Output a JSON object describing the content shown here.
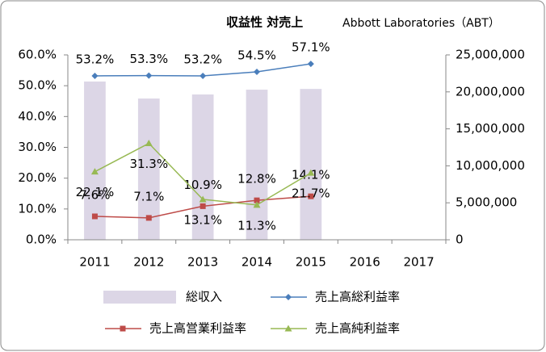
{
  "chart_data": {
    "type": "bar_line",
    "title": "収益性 対売上",
    "subtitle": "Abbott Laboratories（ABT）",
    "categories": [
      "2011",
      "2012",
      "2013",
      "2014",
      "2015",
      "2016",
      "2017"
    ],
    "ylim": [
      0,
      60
    ],
    "yticks": [
      {
        "value": 0,
        "label": "0.0%"
      },
      {
        "value": 10,
        "label": "10.0%"
      },
      {
        "value": 20,
        "label": "20.0%"
      },
      {
        "value": 30,
        "label": "30.0%"
      },
      {
        "value": 40,
        "label": "40.0%"
      },
      {
        "value": 50,
        "label": "50.0%"
      },
      {
        "value": 60,
        "label": "60.0%"
      }
    ],
    "y2lim": [
      0,
      25000000
    ],
    "y2ticks": [
      0,
      {
        "value": 5000000,
        "label": "5,000,000"
      },
      {
        "value": 10000000,
        "label": "10,000,000"
      },
      {
        "value": 15000000,
        "label": "15,000,000"
      },
      {
        "value": 20000000,
        "label": "20,000,000"
      },
      {
        "value": 25000000,
        "label": "25,000,000"
      }
    ],
    "series": [
      {
        "name": "総収入",
        "kind": "bar",
        "axis": "y2",
        "color": "#dcd6e6",
        "values": [
          21400000,
          19100000,
          19650000,
          20300000,
          20400000,
          null,
          null
        ]
      },
      {
        "name": "売上高総利益率",
        "kind": "line",
        "marker": "diamond",
        "color": "#4a7ebb",
        "values": [
          53.2,
          53.3,
          53.2,
          54.5,
          57.1,
          null,
          null
        ],
        "value_labels": [
          "53.2%",
          "53.3%",
          "53.2%",
          "54.5%",
          "57.1%",
          null,
          null
        ]
      },
      {
        "name": "売上高営業利益率",
        "kind": "line",
        "marker": "square",
        "color": "#be4b48",
        "values": [
          7.6,
          7.1,
          10.9,
          12.8,
          14.1,
          null,
          null
        ],
        "value_labels": [
          "7.6%",
          "7.1%",
          "10.9%",
          "12.8%",
          "14.1%",
          null,
          null
        ]
      },
      {
        "name": "売上高純利益率",
        "kind": "line",
        "marker": "triangle",
        "color": "#98b954",
        "values": [
          22.1,
          31.3,
          13.1,
          11.3,
          21.7,
          null,
          null
        ],
        "value_labels": [
          "22.1%",
          "31.3%",
          "13.1%",
          "11.3%",
          "21.7%",
          null,
          null
        ]
      }
    ]
  }
}
